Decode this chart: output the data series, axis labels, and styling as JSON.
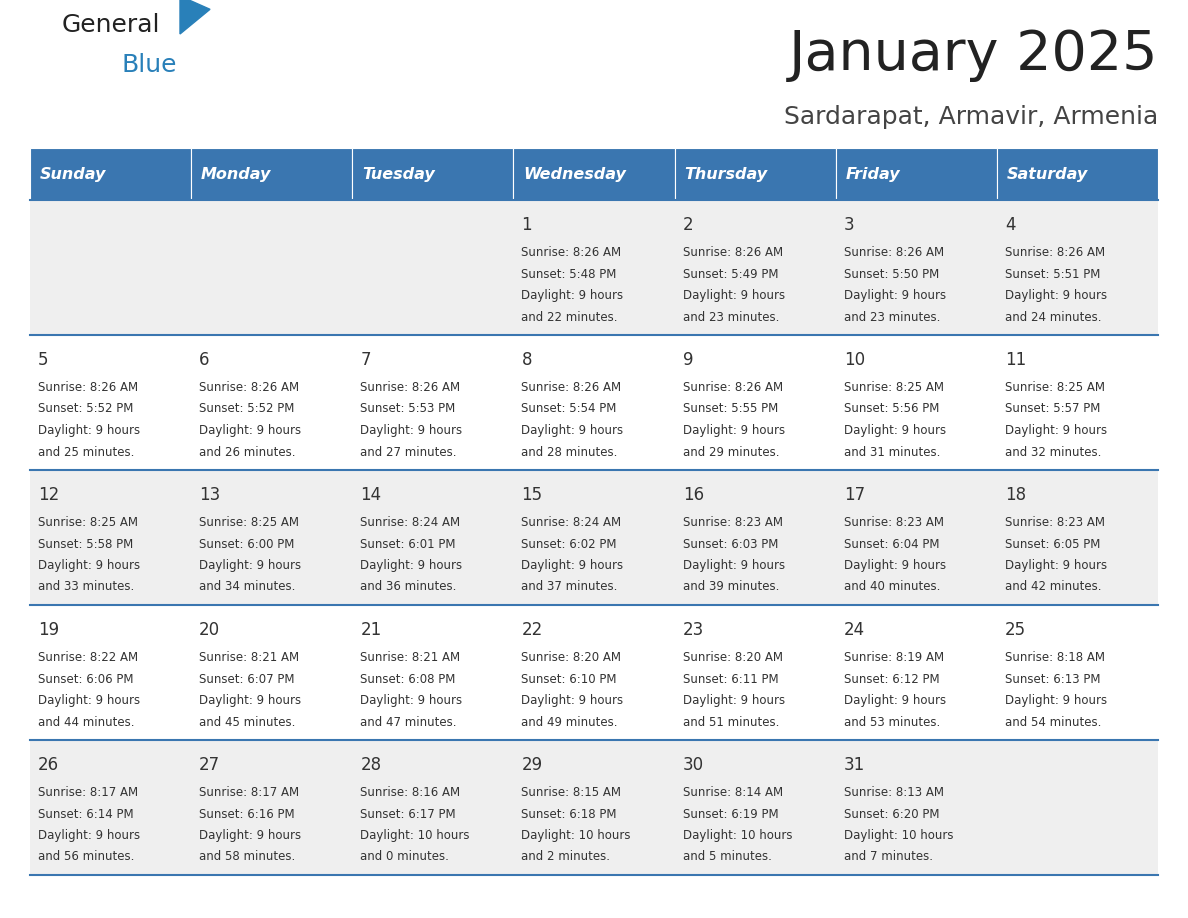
{
  "title": "January 2025",
  "subtitle": "Sardarapat, Armavir, Armenia",
  "days_of_week": [
    "Sunday",
    "Monday",
    "Tuesday",
    "Wednesday",
    "Thursday",
    "Friday",
    "Saturday"
  ],
  "header_bg": "#3a76b0",
  "header_text_color": "#ffffff",
  "row_bg_even": "#efefef",
  "row_bg_odd": "#ffffff",
  "cell_text_color": "#333333",
  "border_color": "#3a76b0",
  "calendar_data": [
    [
      null,
      null,
      null,
      {
        "day": "1",
        "sunrise": "8:26 AM",
        "sunset": "5:48 PM",
        "daylight_l1": "Daylight: 9 hours",
        "daylight_l2": "and 22 minutes."
      },
      {
        "day": "2",
        "sunrise": "8:26 AM",
        "sunset": "5:49 PM",
        "daylight_l1": "Daylight: 9 hours",
        "daylight_l2": "and 23 minutes."
      },
      {
        "day": "3",
        "sunrise": "8:26 AM",
        "sunset": "5:50 PM",
        "daylight_l1": "Daylight: 9 hours",
        "daylight_l2": "and 23 minutes."
      },
      {
        "day": "4",
        "sunrise": "8:26 AM",
        "sunset": "5:51 PM",
        "daylight_l1": "Daylight: 9 hours",
        "daylight_l2": "and 24 minutes."
      }
    ],
    [
      {
        "day": "5",
        "sunrise": "8:26 AM",
        "sunset": "5:52 PM",
        "daylight_l1": "Daylight: 9 hours",
        "daylight_l2": "and 25 minutes."
      },
      {
        "day": "6",
        "sunrise": "8:26 AM",
        "sunset": "5:52 PM",
        "daylight_l1": "Daylight: 9 hours",
        "daylight_l2": "and 26 minutes."
      },
      {
        "day": "7",
        "sunrise": "8:26 AM",
        "sunset": "5:53 PM",
        "daylight_l1": "Daylight: 9 hours",
        "daylight_l2": "and 27 minutes."
      },
      {
        "day": "8",
        "sunrise": "8:26 AM",
        "sunset": "5:54 PM",
        "daylight_l1": "Daylight: 9 hours",
        "daylight_l2": "and 28 minutes."
      },
      {
        "day": "9",
        "sunrise": "8:26 AM",
        "sunset": "5:55 PM",
        "daylight_l1": "Daylight: 9 hours",
        "daylight_l2": "and 29 minutes."
      },
      {
        "day": "10",
        "sunrise": "8:25 AM",
        "sunset": "5:56 PM",
        "daylight_l1": "Daylight: 9 hours",
        "daylight_l2": "and 31 minutes."
      },
      {
        "day": "11",
        "sunrise": "8:25 AM",
        "sunset": "5:57 PM",
        "daylight_l1": "Daylight: 9 hours",
        "daylight_l2": "and 32 minutes."
      }
    ],
    [
      {
        "day": "12",
        "sunrise": "8:25 AM",
        "sunset": "5:58 PM",
        "daylight_l1": "Daylight: 9 hours",
        "daylight_l2": "and 33 minutes."
      },
      {
        "day": "13",
        "sunrise": "8:25 AM",
        "sunset": "6:00 PM",
        "daylight_l1": "Daylight: 9 hours",
        "daylight_l2": "and 34 minutes."
      },
      {
        "day": "14",
        "sunrise": "8:24 AM",
        "sunset": "6:01 PM",
        "daylight_l1": "Daylight: 9 hours",
        "daylight_l2": "and 36 minutes."
      },
      {
        "day": "15",
        "sunrise": "8:24 AM",
        "sunset": "6:02 PM",
        "daylight_l1": "Daylight: 9 hours",
        "daylight_l2": "and 37 minutes."
      },
      {
        "day": "16",
        "sunrise": "8:23 AM",
        "sunset": "6:03 PM",
        "daylight_l1": "Daylight: 9 hours",
        "daylight_l2": "and 39 minutes."
      },
      {
        "day": "17",
        "sunrise": "8:23 AM",
        "sunset": "6:04 PM",
        "daylight_l1": "Daylight: 9 hours",
        "daylight_l2": "and 40 minutes."
      },
      {
        "day": "18",
        "sunrise": "8:23 AM",
        "sunset": "6:05 PM",
        "daylight_l1": "Daylight: 9 hours",
        "daylight_l2": "and 42 minutes."
      }
    ],
    [
      {
        "day": "19",
        "sunrise": "8:22 AM",
        "sunset": "6:06 PM",
        "daylight_l1": "Daylight: 9 hours",
        "daylight_l2": "and 44 minutes."
      },
      {
        "day": "20",
        "sunrise": "8:21 AM",
        "sunset": "6:07 PM",
        "daylight_l1": "Daylight: 9 hours",
        "daylight_l2": "and 45 minutes."
      },
      {
        "day": "21",
        "sunrise": "8:21 AM",
        "sunset": "6:08 PM",
        "daylight_l1": "Daylight: 9 hours",
        "daylight_l2": "and 47 minutes."
      },
      {
        "day": "22",
        "sunrise": "8:20 AM",
        "sunset": "6:10 PM",
        "daylight_l1": "Daylight: 9 hours",
        "daylight_l2": "and 49 minutes."
      },
      {
        "day": "23",
        "sunrise": "8:20 AM",
        "sunset": "6:11 PM",
        "daylight_l1": "Daylight: 9 hours",
        "daylight_l2": "and 51 minutes."
      },
      {
        "day": "24",
        "sunrise": "8:19 AM",
        "sunset": "6:12 PM",
        "daylight_l1": "Daylight: 9 hours",
        "daylight_l2": "and 53 minutes."
      },
      {
        "day": "25",
        "sunrise": "8:18 AM",
        "sunset": "6:13 PM",
        "daylight_l1": "Daylight: 9 hours",
        "daylight_l2": "and 54 minutes."
      }
    ],
    [
      {
        "day": "26",
        "sunrise": "8:17 AM",
        "sunset": "6:14 PM",
        "daylight_l1": "Daylight: 9 hours",
        "daylight_l2": "and 56 minutes."
      },
      {
        "day": "27",
        "sunrise": "8:17 AM",
        "sunset": "6:16 PM",
        "daylight_l1": "Daylight: 9 hours",
        "daylight_l2": "and 58 minutes."
      },
      {
        "day": "28",
        "sunrise": "8:16 AM",
        "sunset": "6:17 PM",
        "daylight_l1": "Daylight: 10 hours",
        "daylight_l2": "and 0 minutes."
      },
      {
        "day": "29",
        "sunrise": "8:15 AM",
        "sunset": "6:18 PM",
        "daylight_l1": "Daylight: 10 hours",
        "daylight_l2": "and 2 minutes."
      },
      {
        "day": "30",
        "sunrise": "8:14 AM",
        "sunset": "6:19 PM",
        "daylight_l1": "Daylight: 10 hours",
        "daylight_l2": "and 5 minutes."
      },
      {
        "day": "31",
        "sunrise": "8:13 AM",
        "sunset": "6:20 PM",
        "daylight_l1": "Daylight: 10 hours",
        "daylight_l2": "and 7 minutes."
      },
      null
    ]
  ],
  "logo_color_general": "#222222",
  "logo_color_blue": "#2980b9",
  "logo_triangle_color": "#2980b9"
}
